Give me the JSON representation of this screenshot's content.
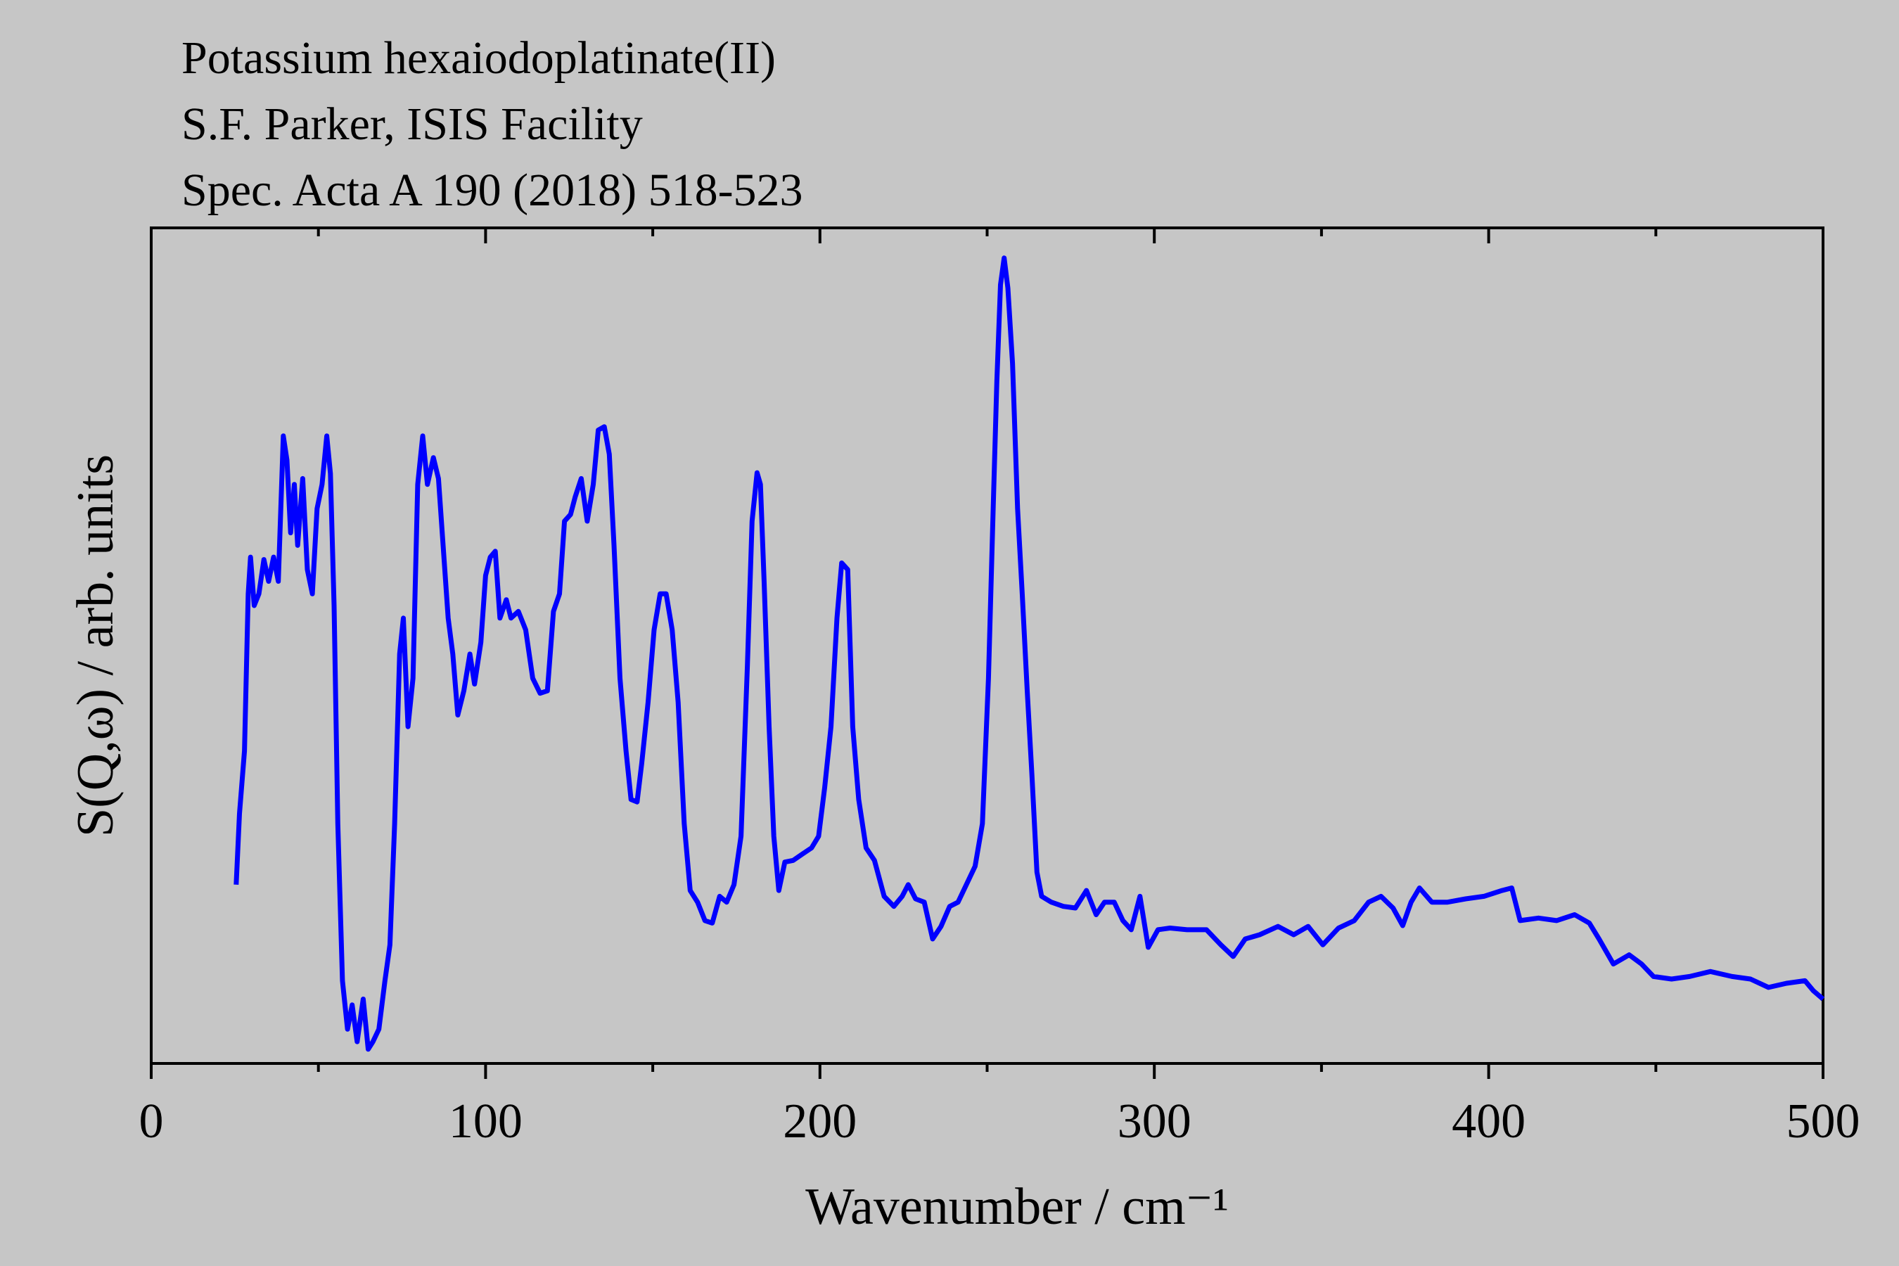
{
  "chart_data": {
    "type": "line",
    "title": "Potassium hexaiodoplatinate(II)",
    "subtitle": [
      "S.F. Parker, ISIS Facility",
      "Spec. Acta A 190 (2018) 518-523"
    ],
    "xlabel": "Wavenumber / cm⁻¹",
    "ylabel": "S(Q,ω) / arb. units",
    "xlim": [
      0,
      500
    ],
    "ylim": [
      0,
      100
    ],
    "xticks": [
      0,
      100,
      200,
      300,
      400,
      500
    ],
    "xminorticks": [
      50,
      150,
      250,
      350,
      450
    ],
    "color": "#0000ff",
    "x": [
      25.4,
      26.4,
      27.9,
      29,
      29.7,
      30.8,
      32.2,
      33.7,
      35.1,
      36.6,
      38,
      39.5,
      40.6,
      41.7,
      42.8,
      43.8,
      45.3,
      46.7,
      48.2,
      49.6,
      51.1,
      52.5,
      53.6,
      54.7,
      55.8,
      57.2,
      58.7,
      60.1,
      61.6,
      63.4,
      64.9,
      66.3,
      68.1,
      69.9,
      71.4,
      72.8,
      74.3,
      75.4,
      76.8,
      78.3,
      79.7,
      81.2,
      82.6,
      84.4,
      85.9,
      87.3,
      88.8,
      90.2,
      91.7,
      93.5,
      95.3,
      96.7,
      98.6,
      100,
      101.4,
      102.9,
      104.3,
      106.2,
      107.6,
      109.8,
      112,
      114.1,
      116.3,
      118.5,
      120.3,
      122.1,
      123.6,
      125.4,
      126.8,
      128.6,
      130.4,
      132.2,
      133.7,
      135.5,
      137,
      138.4,
      140.2,
      142,
      143.5,
      145.3,
      146.7,
      148.6,
      150.4,
      152.2,
      154,
      155.8,
      157.6,
      159.4,
      161.2,
      163.4,
      165.6,
      167.8,
      170,
      172.1,
      174.3,
      176.4,
      178.3,
      179.7,
      181.2,
      182.2,
      183.3,
      184.8,
      186.2,
      187.7,
      189.5,
      192,
      194.9,
      197.5,
      199.6,
      201.4,
      203.3,
      205.1,
      206.5,
      208.3,
      209.8,
      211.6,
      213.8,
      216.3,
      219.2,
      222.1,
      224.6,
      226.4,
      228.6,
      231.2,
      233.7,
      236.2,
      238.8,
      241.3,
      243.8,
      246.4,
      248.6,
      250.4,
      251.8,
      252.9,
      254,
      255.1,
      256.2,
      257.6,
      259.1,
      260.5,
      262,
      263.4,
      264.9,
      266.3,
      269.2,
      272.8,
      276.4,
      279.7,
      282.6,
      285.1,
      288,
      290.6,
      293.1,
      295.7,
      298.2,
      301.1,
      304.7,
      309.8,
      315.6,
      319.9,
      323.6,
      327.2,
      331.5,
      337,
      341.7,
      346,
      350.4,
      355.1,
      359.8,
      364.1,
      367.8,
      371.4,
      374.3,
      376.8,
      379.3,
      383,
      387.7,
      393.1,
      398.6,
      404,
      406.9,
      409.4,
      414.9,
      420.3,
      425.7,
      430.1,
      433,
      437.3,
      442,
      445.7,
      449.3,
      454.7,
      460.1,
      466.3,
      472.8,
      478.3,
      483.7,
      489.1,
      494.6,
      497.1,
      500
    ],
    "values": [
      21.4,
      29.9,
      37.4,
      56.2,
      60.6,
      54.8,
      56.2,
      60.3,
      57.7,
      60.6,
      57.7,
      75.1,
      72.2,
      63.5,
      69.3,
      62,
      70,
      59.1,
      56.2,
      66.4,
      69.3,
      75.1,
      70.6,
      54.8,
      28.7,
      9.9,
      4.1,
      7,
      2.6,
      7.7,
      1.7,
      2.6,
      4.1,
      9.9,
      14.2,
      28.7,
      49,
      53.3,
      40.3,
      46.1,
      69.3,
      75.1,
      69.3,
      72.5,
      70,
      62,
      53.3,
      49,
      41.7,
      44.6,
      49,
      45.4,
      50.4,
      58.4,
      60.6,
      61.3,
      53.3,
      55.5,
      53.3,
      54.1,
      51.9,
      46.1,
      44.3,
      44.6,
      54.1,
      56.2,
      64.9,
      65.7,
      67.8,
      70,
      64.9,
      69.3,
      75.8,
      76.2,
      72.9,
      62,
      46.1,
      37.4,
      31.6,
      31.3,
      35.9,
      43.2,
      51.9,
      56.2,
      56.2,
      51.9,
      43.2,
      28.7,
      20.7,
      19.3,
      17.1,
      16.8,
      20,
      19.3,
      21.4,
      27.2,
      47.5,
      64.9,
      70.7,
      69.3,
      57.7,
      40.3,
      27.2,
      20.7,
      24.1,
      24.3,
      25.1,
      25.8,
      27.2,
      33,
      40.3,
      53.3,
      59.9,
      59.1,
      40.3,
      31.6,
      25.8,
      24.3,
      20,
      18.8,
      20,
      21.4,
      19.7,
      19.3,
      14.9,
      16.4,
      18.8,
      19.3,
      21.4,
      23.6,
      28.7,
      46.1,
      66.4,
      81.6,
      93.2,
      96.4,
      92.8,
      83.8,
      66.4,
      56.2,
      44.6,
      34.5,
      22.9,
      20,
      19.3,
      18.8,
      18.6,
      20.7,
      17.8,
      19.3,
      19.3,
      17.1,
      16,
      20,
      13.9,
      16,
      16.2,
      16,
      16,
      14.2,
      12.8,
      14.9,
      15.4,
      16.4,
      15.4,
      16.4,
      14.2,
      16.2,
      17.1,
      19.3,
      20,
      18.6,
      16.5,
      19.3,
      21,
      19.3,
      19.3,
      19.7,
      20,
      20.7,
      21,
      17.1,
      17.4,
      17.1,
      17.8,
      16.8,
      14.9,
      11.9,
      13,
      11.9,
      10.4,
      10.1,
      10.4,
      11,
      10.4,
      10.1,
      9.1,
      9.6,
      9.9,
      8.7,
      7.7
    ]
  }
}
